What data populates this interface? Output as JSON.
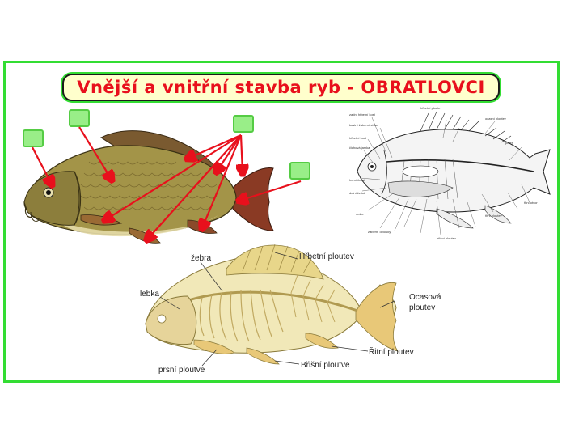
{
  "title": "Vnější a vnitřní stavba ryb - OBRATLOVCI",
  "colors": {
    "frame": "#33dd33",
    "title_text": "#e8101c",
    "title_bg": "#ffffcc",
    "drop_box": "#99ee88",
    "arrow": "#e8101c"
  },
  "drop_boxes": [
    "answer-box-1",
    "answer-box-2",
    "answer-box-3",
    "answer-box-4"
  ],
  "skeleton_labels": {
    "zebra": "žebra",
    "hrbetni": "Hřbetní ploutev",
    "lebka": "lebka",
    "ocasova_line1": "Ocasová",
    "ocasova_line2": "ploutev",
    "ritni": "Řitní ploutev",
    "prsni": "prsní ploutve",
    "brisni": "Břišní ploutve"
  },
  "anatomy_labels": [
    "zadní hřbetní kost",
    "kostní žaberní víčka",
    "hřbetní kost",
    "čichová jamka",
    "horní čelist",
    "dolní čelist",
    "srdce",
    "žaberní oblouky",
    "jícen",
    "žaludek",
    "játra",
    "střevo",
    "plynový měchýř",
    "močový měchýř",
    "ledvina",
    "pohlavní orgány",
    "řitní otvor",
    "páteř",
    "žebra",
    "postranní čára",
    "ocasní ploutev",
    "hřbetní ploutev",
    "prsní ploutev",
    "břišní ploutev",
    "řitní ploutev",
    "žábry",
    "mozek",
    "míchа"
  ]
}
